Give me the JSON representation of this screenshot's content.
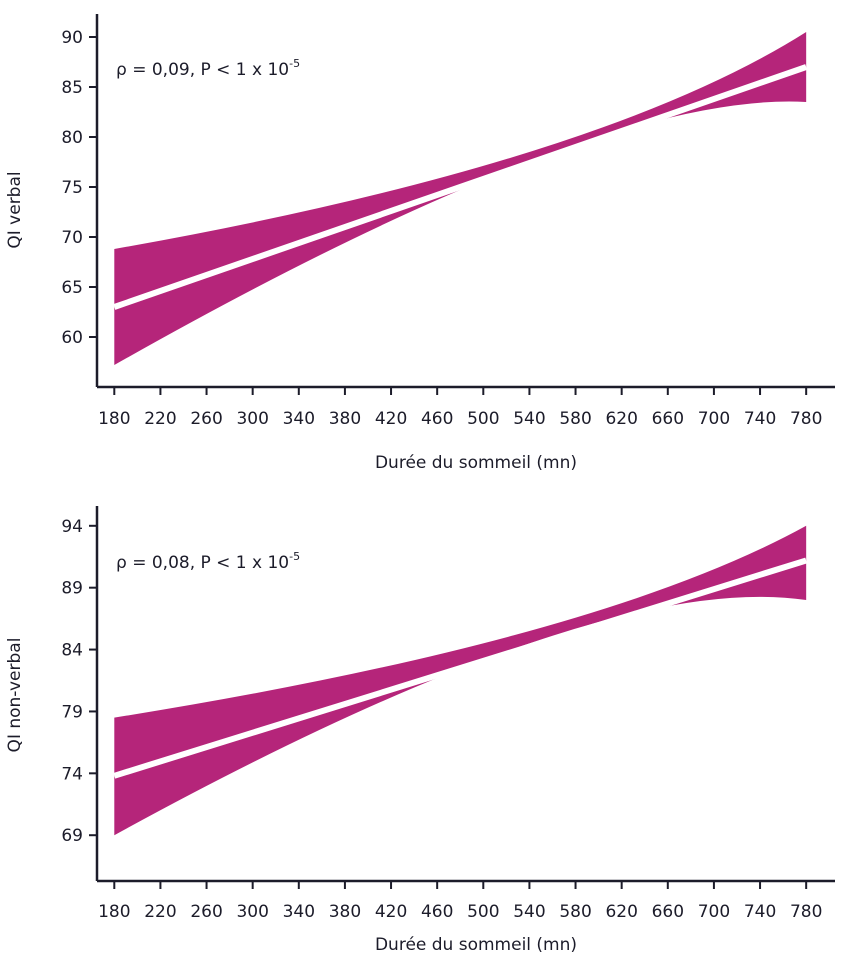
{
  "colors": {
    "band": "#b5257a",
    "fit_line": "#ffffff",
    "axis": "#1c1c2a"
  },
  "chart_data": [
    {
      "type": "area",
      "xlabel": "Durée du sommeil (mn)",
      "ylabel": "QI verbal",
      "annotation": {
        "main": "ρ = 0,09, P < 1 x 10",
        "sup": "-5"
      },
      "xticks": [
        180,
        220,
        260,
        300,
        340,
        380,
        420,
        460,
        500,
        540,
        580,
        620,
        660,
        700,
        740,
        780
      ],
      "yticks": [
        60,
        65,
        70,
        75,
        80,
        85,
        90
      ],
      "xlim": [
        165,
        805
      ],
      "ylim": [
        55,
        92.3
      ],
      "series": [
        {
          "role": "ci_upper",
          "x": [
            180,
            540,
            780
          ],
          "y": [
            68.8,
            78.5,
            90.5
          ]
        },
        {
          "role": "fit",
          "x": [
            180,
            780
          ],
          "y": [
            63.0,
            87.0
          ]
        },
        {
          "role": "ci_lower",
          "x": [
            180,
            540,
            780
          ],
          "y": [
            57.2,
            77.5,
            83.5
          ]
        }
      ],
      "grid": false
    },
    {
      "type": "area",
      "xlabel": "Durée du sommeil (mn)",
      "ylabel": "QI non-verbal",
      "annotation": {
        "main": "ρ = 0,08, P < 1 x 10",
        "sup": "-5"
      },
      "xticks": [
        180,
        220,
        260,
        300,
        340,
        380,
        420,
        460,
        500,
        540,
        580,
        620,
        660,
        700,
        740,
        780
      ],
      "yticks": [
        69,
        74,
        79,
        84,
        89,
        94
      ],
      "xlim": [
        165,
        805
      ],
      "ylim": [
        65.3,
        95.6
      ],
      "series": [
        {
          "role": "ci_upper",
          "x": [
            180,
            540,
            780
          ],
          "y": [
            78.5,
            85.5,
            94.0
          ]
        },
        {
          "role": "fit",
          "x": [
            180,
            780
          ],
          "y": [
            73.8,
            91.2
          ]
        },
        {
          "role": "ci_lower",
          "x": [
            180,
            540,
            780
          ],
          "y": [
            69.0,
            84.5,
            88.0
          ]
        }
      ],
      "grid": false
    }
  ]
}
